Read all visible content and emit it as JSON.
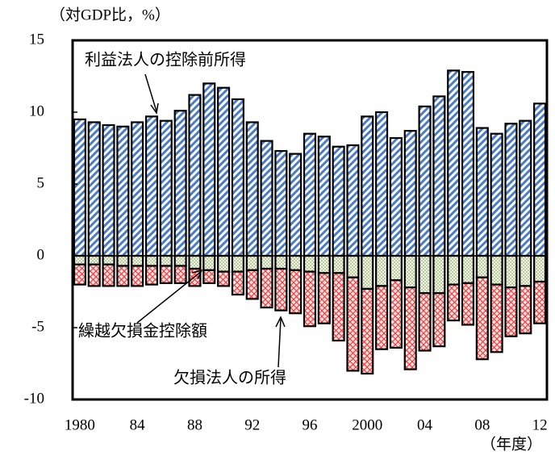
{
  "chart_data": {
    "type": "bar",
    "y_label": "（対GDP比，%）",
    "x_label": "（年度）",
    "categories": [
      "1980",
      null,
      null,
      null,
      "84",
      null,
      null,
      null,
      "88",
      null,
      null,
      null,
      "92",
      null,
      null,
      null,
      "96",
      null,
      null,
      null,
      "2000",
      null,
      null,
      null,
      "04",
      null,
      null,
      null,
      "08",
      null,
      null,
      null,
      "12"
    ],
    "series": [
      {
        "name": "利益法人の控除前所得",
        "color": "#4a7cc9",
        "values": [
          9.5,
          9.3,
          9.1,
          9.0,
          9.3,
          9.7,
          9.4,
          10.1,
          11.2,
          12.0,
          11.7,
          10.9,
          9.3,
          8.0,
          7.3,
          7.1,
          8.5,
          8.3,
          7.6,
          7.7,
          9.7,
          10.0,
          8.2,
          8.7,
          10.4,
          11.1,
          12.9,
          12.8,
          8.9,
          8.5,
          9.2,
          9.4,
          10.6
        ]
      },
      {
        "name": "繰越欠損金控除額",
        "color": "#7a9a50",
        "values": [
          -0.6,
          -0.6,
          -0.6,
          -0.7,
          -0.7,
          -0.7,
          -0.7,
          -0.7,
          -0.9,
          -1.0,
          -1.1,
          -1.1,
          -1.0,
          -0.9,
          -0.9,
          -1.0,
          -1.1,
          -1.2,
          -1.2,
          -1.5,
          -2.3,
          -2.1,
          -1.7,
          -2.2,
          -2.6,
          -2.6,
          -2.0,
          -1.9,
          -1.5,
          -2.0,
          -2.2,
          -2.1,
          -1.8
        ]
      },
      {
        "name": "欠損法人の所得",
        "color": "#e84040",
        "values": [
          -1.4,
          -1.5,
          -1.5,
          -1.4,
          -1.4,
          -1.3,
          -1.2,
          -1.2,
          -1.2,
          -0.9,
          -1.0,
          -1.6,
          -2.0,
          -2.7,
          -2.9,
          -3.0,
          -3.8,
          -3.5,
          -4.7,
          -6.5,
          -5.9,
          -4.4,
          -4.7,
          -5.7,
          -4.0,
          -3.7,
          -2.5,
          -2.9,
          -5.7,
          -4.7,
          -3.4,
          -3.3,
          -2.9
        ]
      }
    ],
    "ylim": [
      -10,
      15
    ],
    "yticks": [
      -10,
      -5,
      0,
      5,
      10,
      15
    ]
  }
}
